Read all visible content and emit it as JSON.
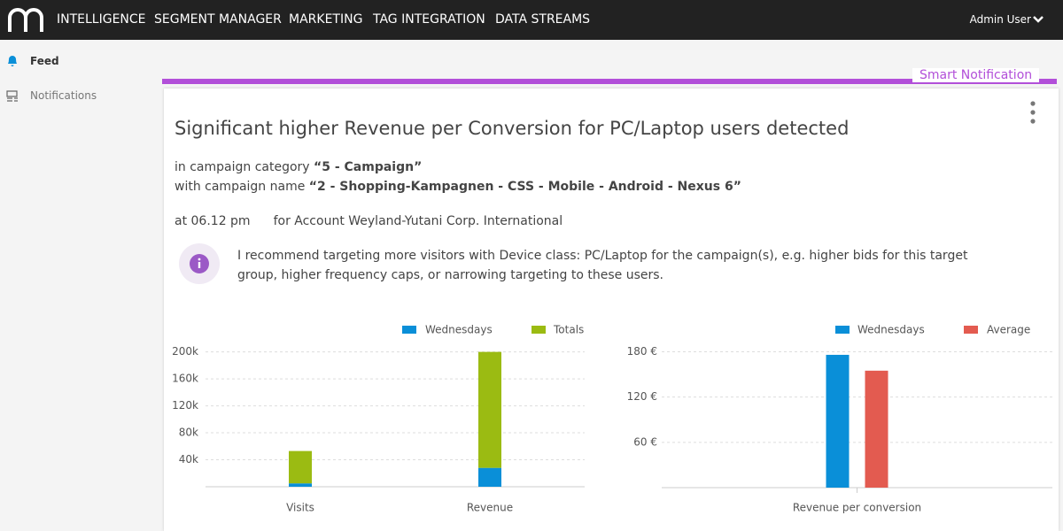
{
  "nav": {
    "items": [
      "INTELLIGENCE",
      "SEGMENT MANAGER",
      "MARKETING",
      "TAG INTEGRATION",
      "DATA STREAMS"
    ],
    "user": "Admin User"
  },
  "sidebar": {
    "items": [
      "Feed",
      "Notifications"
    ]
  },
  "notification": {
    "label": "Smart Notification",
    "title": "Significant higher Revenue per Conversion for PC/Laptop users detected",
    "category_prefix": "in campaign category",
    "category": "“5 - Campaign”",
    "name_prefix": "with campaign name",
    "name": "“2 - Shopping-Kampagnen - CSS - Mobile - Android - Nexus 6”",
    "time": "at 06.12 pm",
    "account": "for Account Weyland-Yutani Corp. International",
    "recommendation": "I recommend targeting more visitors with Device class: PC/Laptop for the campaign(s), e.g. higher bids for this target group, higher frequency caps, or narrowing targeting to these users."
  },
  "chart_data": [
    {
      "type": "bar",
      "stacked": true,
      "categories": [
        "Visits",
        "Revenue"
      ],
      "series": [
        {
          "name": "Wednesdays",
          "color": "#0a8fd8",
          "values": [
            5000,
            28000
          ]
        },
        {
          "name": "Totals",
          "color": "#9bbb12",
          "values": [
            48000,
            172000
          ]
        }
      ],
      "ylim": [
        0,
        210000
      ],
      "yticks": [
        {
          "value": 40000,
          "label": "40k"
        },
        {
          "value": 80000,
          "label": "80k"
        },
        {
          "value": 120000,
          "label": "120k"
        },
        {
          "value": 160000,
          "label": "160k"
        },
        {
          "value": 200000,
          "label": "200k"
        }
      ],
      "grid": true
    },
    {
      "type": "bar",
      "stacked": false,
      "categories": [
        "Revenue per conversion"
      ],
      "series": [
        {
          "name": "Wednesdays",
          "color": "#0a8fd8",
          "values": [
            176
          ]
        },
        {
          "name": "Average",
          "color": "#e35b50",
          "values": [
            155
          ]
        }
      ],
      "ylim": [
        0,
        190
      ],
      "yticks": [
        {
          "value": 60,
          "label": "60 €"
        },
        {
          "value": 120,
          "label": "120 €"
        },
        {
          "value": 180,
          "label": "180 €"
        }
      ],
      "grid": true
    }
  ]
}
